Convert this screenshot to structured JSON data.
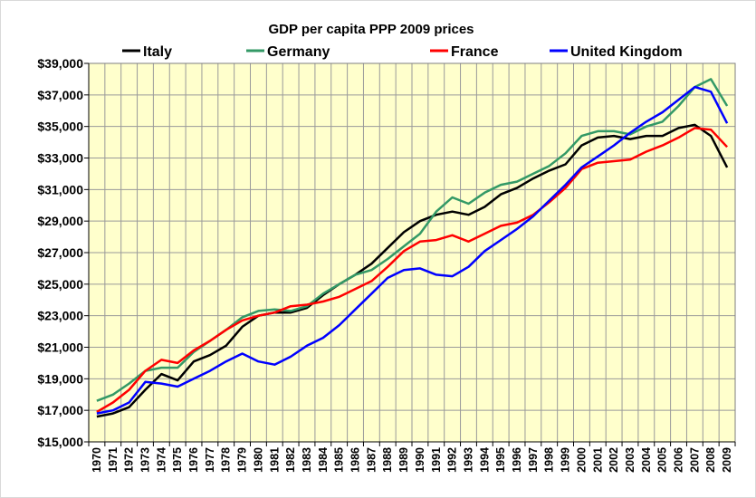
{
  "chart_data": {
    "type": "line",
    "title": "GDP per capita PPP 2009 prices",
    "xlabel": "",
    "ylabel": "",
    "x": [
      "1970",
      "1971",
      "1972",
      "1973",
      "1974",
      "1975",
      "1976",
      "1977",
      "1978",
      "1979",
      "1980",
      "1981",
      "1982",
      "1983",
      "1984",
      "1985",
      "1986",
      "1987",
      "1988",
      "1989",
      "1990",
      "1991",
      "1992",
      "1993",
      "1994",
      "1995",
      "1996",
      "1997",
      "1998",
      "1999",
      "2000",
      "2001",
      "2002",
      "2003",
      "2004",
      "2005",
      "2006",
      "2007",
      "2008",
      "2009"
    ],
    "ylim": [
      15000,
      39000
    ],
    "yticks": [
      15000,
      17000,
      19000,
      21000,
      23000,
      25000,
      27000,
      29000,
      31000,
      33000,
      35000,
      37000,
      39000
    ],
    "ytick_labels": [
      "$15,000",
      "$17,000",
      "$19,000",
      "$21,000",
      "$23,000",
      "$25,000",
      "$27,000",
      "$29,000",
      "$31,000",
      "$33,000",
      "$35,000",
      "$37,000",
      "$39,000"
    ],
    "grid": true,
    "legend_position": "top",
    "plot_background": "#ffffcc",
    "series": [
      {
        "name": "Italy",
        "color": "#000000",
        "values": [
          16600,
          16800,
          17200,
          18300,
          19300,
          18900,
          20100,
          20500,
          21100,
          22300,
          23000,
          23200,
          23200,
          23500,
          24300,
          25000,
          25600,
          26300,
          27300,
          28300,
          29000,
          29400,
          29600,
          29400,
          29900,
          30700,
          31100,
          31700,
          32200,
          32600,
          33800,
          34300,
          34400,
          34200,
          34400,
          34400,
          34900,
          35100,
          34400,
          32400
        ]
      },
      {
        "name": "Germany",
        "color": "#339966",
        "values": [
          17600,
          18000,
          18700,
          19500,
          19700,
          19700,
          20700,
          21400,
          22100,
          22900,
          23300,
          23400,
          23300,
          23600,
          24400,
          25000,
          25600,
          25900,
          26600,
          27400,
          28200,
          29600,
          30500,
          30100,
          30800,
          31300,
          31500,
          32000,
          32500,
          33300,
          34400,
          34700,
          34700,
          34500,
          35000,
          35300,
          36300,
          37500,
          38000,
          36300
        ]
      },
      {
        "name": "France",
        "color": "#ff0000",
        "values": [
          16900,
          17500,
          18300,
          19500,
          20200,
          20000,
          20800,
          21400,
          22100,
          22700,
          23000,
          23200,
          23600,
          23700,
          23900,
          24200,
          24700,
          25200,
          26100,
          27100,
          27700,
          27800,
          28100,
          27700,
          28200,
          28700,
          28900,
          29400,
          30200,
          31100,
          32300,
          32700,
          32800,
          32900,
          33400,
          33800,
          34300,
          34900,
          34800,
          33700
        ]
      },
      {
        "name": "United Kingdom",
        "color": "#0000ff",
        "values": [
          16800,
          17000,
          17500,
          18800,
          18700,
          18500,
          19000,
          19500,
          20100,
          20600,
          20100,
          19900,
          20400,
          21100,
          21600,
          22400,
          23400,
          24400,
          25400,
          25900,
          26000,
          25600,
          25500,
          26100,
          27100,
          27800,
          28500,
          29300,
          30300,
          31300,
          32400,
          33100,
          33800,
          34600,
          35300,
          35900,
          36700,
          37500,
          37200,
          35200
        ]
      }
    ]
  }
}
